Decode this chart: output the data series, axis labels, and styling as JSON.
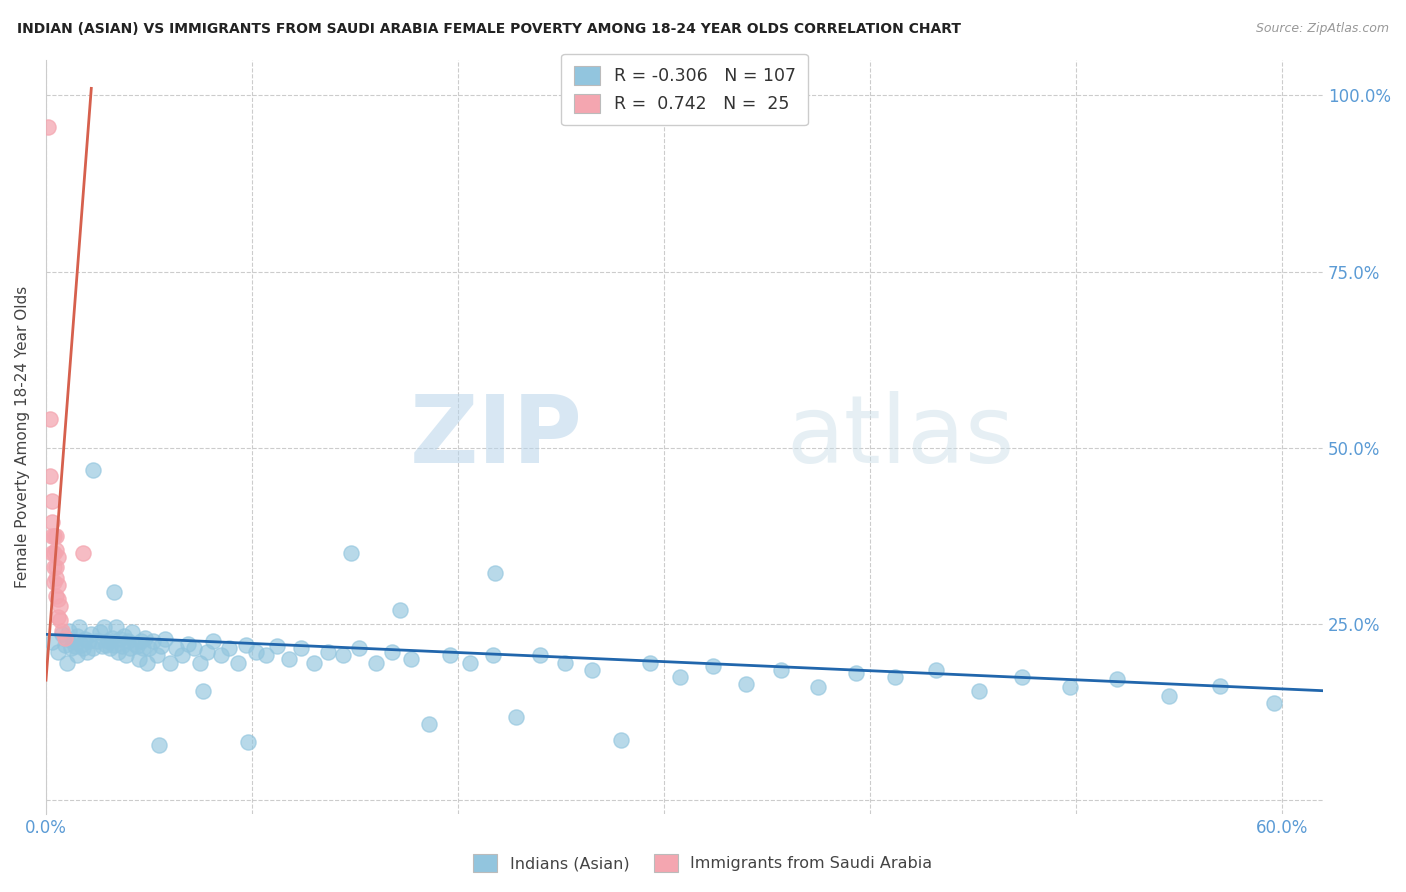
{
  "title": "INDIAN (ASIAN) VS IMMIGRANTS FROM SAUDI ARABIA FEMALE POVERTY AMONG 18-24 YEAR OLDS CORRELATION CHART",
  "source": "Source: ZipAtlas.com",
  "ylabel": "Female Poverty Among 18-24 Year Olds",
  "xlim": [
    0.0,
    0.62
  ],
  "ylim": [
    -0.02,
    1.05
  ],
  "legend_r1": "-0.306",
  "legend_n1": "107",
  "legend_r2": "0.742",
  "legend_n2": "25",
  "color_blue": "#92c5de",
  "color_pink": "#f4a6b0",
  "color_line_blue": "#2166ac",
  "color_line_pink": "#d6604d",
  "watermark_zip": "ZIP",
  "watermark_atlas": "atlas",
  "series1_label": "Indians (Asian)",
  "series2_label": "Immigrants from Saudi Arabia",
  "blue_line_x": [
    0.0,
    0.62
  ],
  "blue_line_y": [
    0.235,
    0.155
  ],
  "pink_line_x": [
    0.0,
    0.022
  ],
  "pink_line_y": [
    0.17,
    1.01
  ],
  "blue_points_x": [
    0.003,
    0.006,
    0.008,
    0.009,
    0.01,
    0.01,
    0.011,
    0.012,
    0.013,
    0.014,
    0.015,
    0.015,
    0.016,
    0.017,
    0.018,
    0.019,
    0.02,
    0.021,
    0.022,
    0.023,
    0.025,
    0.026,
    0.027,
    0.028,
    0.029,
    0.03,
    0.031,
    0.032,
    0.033,
    0.034,
    0.035,
    0.036,
    0.037,
    0.038,
    0.039,
    0.04,
    0.041,
    0.042,
    0.043,
    0.044,
    0.045,
    0.046,
    0.047,
    0.048,
    0.049,
    0.05,
    0.052,
    0.054,
    0.056,
    0.058,
    0.06,
    0.063,
    0.066,
    0.069,
    0.072,
    0.075,
    0.078,
    0.081,
    0.085,
    0.089,
    0.093,
    0.097,
    0.102,
    0.107,
    0.112,
    0.118,
    0.124,
    0.13,
    0.137,
    0.144,
    0.152,
    0.16,
    0.168,
    0.177,
    0.186,
    0.196,
    0.206,
    0.217,
    0.228,
    0.24,
    0.252,
    0.265,
    0.279,
    0.293,
    0.308,
    0.324,
    0.34,
    0.357,
    0.375,
    0.393,
    0.412,
    0.432,
    0.453,
    0.474,
    0.497,
    0.52,
    0.545,
    0.57,
    0.596,
    0.218,
    0.055,
    0.076,
    0.098,
    0.033,
    0.148,
    0.172,
    0.023
  ],
  "blue_points_y": [
    0.224,
    0.21,
    0.235,
    0.22,
    0.195,
    0.228,
    0.24,
    0.215,
    0.225,
    0.218,
    0.232,
    0.205,
    0.245,
    0.22,
    0.215,
    0.228,
    0.21,
    0.225,
    0.235,
    0.215,
    0.225,
    0.238,
    0.218,
    0.245,
    0.22,
    0.225,
    0.215,
    0.23,
    0.22,
    0.245,
    0.21,
    0.228,
    0.218,
    0.232,
    0.205,
    0.225,
    0.215,
    0.238,
    0.222,
    0.218,
    0.2,
    0.225,
    0.215,
    0.23,
    0.195,
    0.215,
    0.225,
    0.205,
    0.218,
    0.228,
    0.195,
    0.215,
    0.205,
    0.222,
    0.215,
    0.195,
    0.21,
    0.225,
    0.205,
    0.215,
    0.195,
    0.22,
    0.21,
    0.205,
    0.218,
    0.2,
    0.215,
    0.195,
    0.21,
    0.205,
    0.215,
    0.195,
    0.21,
    0.2,
    0.108,
    0.205,
    0.195,
    0.205,
    0.118,
    0.205,
    0.195,
    0.185,
    0.085,
    0.195,
    0.175,
    0.19,
    0.165,
    0.185,
    0.16,
    0.18,
    0.175,
    0.185,
    0.155,
    0.175,
    0.16,
    0.172,
    0.148,
    0.162,
    0.138,
    0.322,
    0.078,
    0.155,
    0.082,
    0.295,
    0.35,
    0.27,
    0.468
  ],
  "pink_points_x": [
    0.001,
    0.002,
    0.002,
    0.003,
    0.003,
    0.003,
    0.003,
    0.004,
    0.004,
    0.004,
    0.004,
    0.005,
    0.005,
    0.005,
    0.005,
    0.005,
    0.006,
    0.006,
    0.006,
    0.006,
    0.007,
    0.007,
    0.008,
    0.009,
    0.018
  ],
  "pink_points_y": [
    0.955,
    0.54,
    0.46,
    0.395,
    0.425,
    0.375,
    0.35,
    0.33,
    0.35,
    0.375,
    0.31,
    0.29,
    0.315,
    0.33,
    0.355,
    0.375,
    0.26,
    0.285,
    0.305,
    0.345,
    0.255,
    0.275,
    0.24,
    0.23,
    0.35
  ]
}
